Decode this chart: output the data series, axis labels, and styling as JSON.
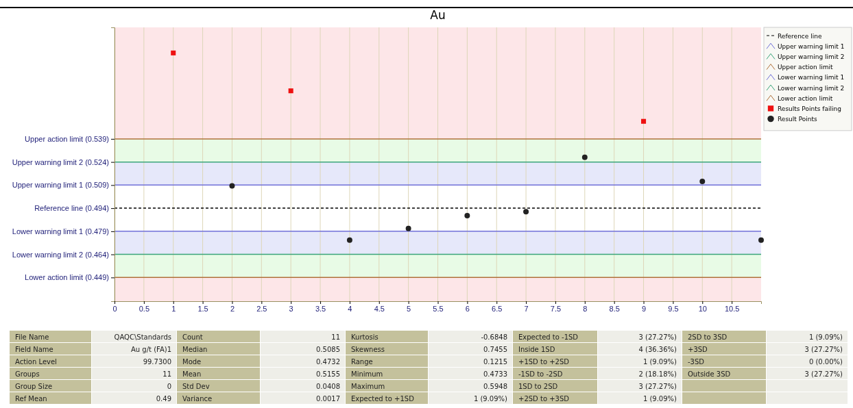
{
  "chart_data": {
    "type": "scatter",
    "title": "Au",
    "xlim": [
      0,
      11
    ],
    "xticks": [
      0,
      0.5,
      1,
      1.5,
      2,
      2.5,
      3,
      3.5,
      4,
      4.5,
      5,
      5.5,
      6,
      6.5,
      7,
      7.5,
      8,
      8.5,
      9,
      9.5,
      10,
      10.5
    ],
    "ylim": [
      0.4336,
      0.6114
    ],
    "yticks": [
      {
        "value": 0.539,
        "label": "Upper action limit (0.539)"
      },
      {
        "value": 0.524,
        "label": "Upper warning limit 2 (0.524)"
      },
      {
        "value": 0.509,
        "label": "Upper warning limit 1 (0.509)"
      },
      {
        "value": 0.494,
        "label": "Reference line (0.494)"
      },
      {
        "value": 0.479,
        "label": "Lower warning limit 1 (0.479)"
      },
      {
        "value": 0.464,
        "label": "Lower warning limit 2 (0.464)"
      },
      {
        "value": 0.449,
        "label": "Lower action limit (0.449)"
      }
    ],
    "grid": "x",
    "legend": "top right",
    "bands": [
      {
        "axis": "y",
        "from": 0.539,
        "to": 0.6114,
        "color": "#fde6e8"
      },
      {
        "axis": "y",
        "from": 0.524,
        "to": 0.539,
        "color": "#e8fbe6"
      },
      {
        "axis": "y",
        "from": 0.509,
        "to": 0.524,
        "color": "#e6e8fa"
      },
      {
        "axis": "y",
        "from": 0.464,
        "to": 0.479,
        "color": "#e6e8fa"
      },
      {
        "axis": "y",
        "from": 0.449,
        "to": 0.464,
        "color": "#e8fbe6"
      },
      {
        "axis": "y",
        "from": 0.4336,
        "to": 0.449,
        "color": "#fde6e8"
      }
    ],
    "ref_lines": [
      {
        "axis": "y",
        "value": 0.494,
        "label": "Reference line",
        "color": "#000000",
        "line_style": "dashed"
      },
      {
        "axis": "y",
        "value": 0.509,
        "label": "Upper warning limit 1",
        "color": "#7070d8",
        "line_style": "solid"
      },
      {
        "axis": "y",
        "value": 0.524,
        "label": "Upper warning limit 2",
        "color": "#3aa57a",
        "line_style": "solid"
      },
      {
        "axis": "y",
        "value": 0.539,
        "label": "Upper action limit",
        "color": "#b0703a",
        "line_style": "solid"
      },
      {
        "axis": "y",
        "value": 0.479,
        "label": "Lower warning limit 1",
        "color": "#7070d8",
        "line_style": "solid"
      },
      {
        "axis": "y",
        "value": 0.464,
        "label": "Lower warning limit 2",
        "color": "#3aa57a",
        "line_style": "solid"
      },
      {
        "axis": "y",
        "value": 0.449,
        "label": "Lower action limit",
        "color": "#b0703a",
        "line_style": "solid"
      }
    ],
    "series": [
      {
        "name": "Results Points failing",
        "color": "#ee1111",
        "marker": "square",
        "x": [
          1,
          3,
          9
        ],
        "values": [
          0.5948,
          0.5702,
          0.5504
        ]
      },
      {
        "name": "Result Points",
        "color": "#222222",
        "marker": "circle",
        "x": [
          2,
          4,
          5,
          6,
          7,
          8,
          10,
          11
        ],
        "values": [
          0.5085,
          0.4733,
          0.4808,
          0.4892,
          0.4917,
          0.5271,
          0.5114,
          0.4733
        ]
      }
    ],
    "annotations": [
      "File Name",
      "QAQC\\Standards",
      "Count",
      "11",
      "Kurtosis",
      "-0.6848",
      "Expected to -1SD",
      "3 (27.27%)",
      "2SD to 3SD",
      "1 (9.09%)",
      "Field Name",
      "Au g/t (FA)1",
      "Median",
      "0.5085",
      "Skewness",
      "0.7455",
      "Inside 1SD",
      "4 (36.36%)",
      "+3SD",
      "3 (27.27%)",
      "Action Level",
      "99.7300",
      "Mode",
      "0.4732",
      "Range",
      "0.1215",
      "+1SD to +2SD",
      "1 (9.09%)",
      "-3SD",
      "0 (0.00%)",
      "Groups",
      "11",
      "Mean",
      "0.5155",
      "Minimum",
      "0.4733",
      "-1SD to -2SD",
      "2 (18.18%)",
      "Outside 3SD",
      "3 (27.27%)",
      "Group Size",
      "0",
      "Std Dev",
      "0.0408",
      "Maximum",
      "0.5948",
      "1SD to 2SD",
      "3 (27.27%)",
      null,
      null,
      "Ref Mean",
      "0.49",
      "Variance",
      "0.0017",
      "Expected to +1SD",
      "1 (9.09%)",
      "+2SD to +3SD",
      "1 (9.09%)",
      null,
      null
    ]
  }
}
